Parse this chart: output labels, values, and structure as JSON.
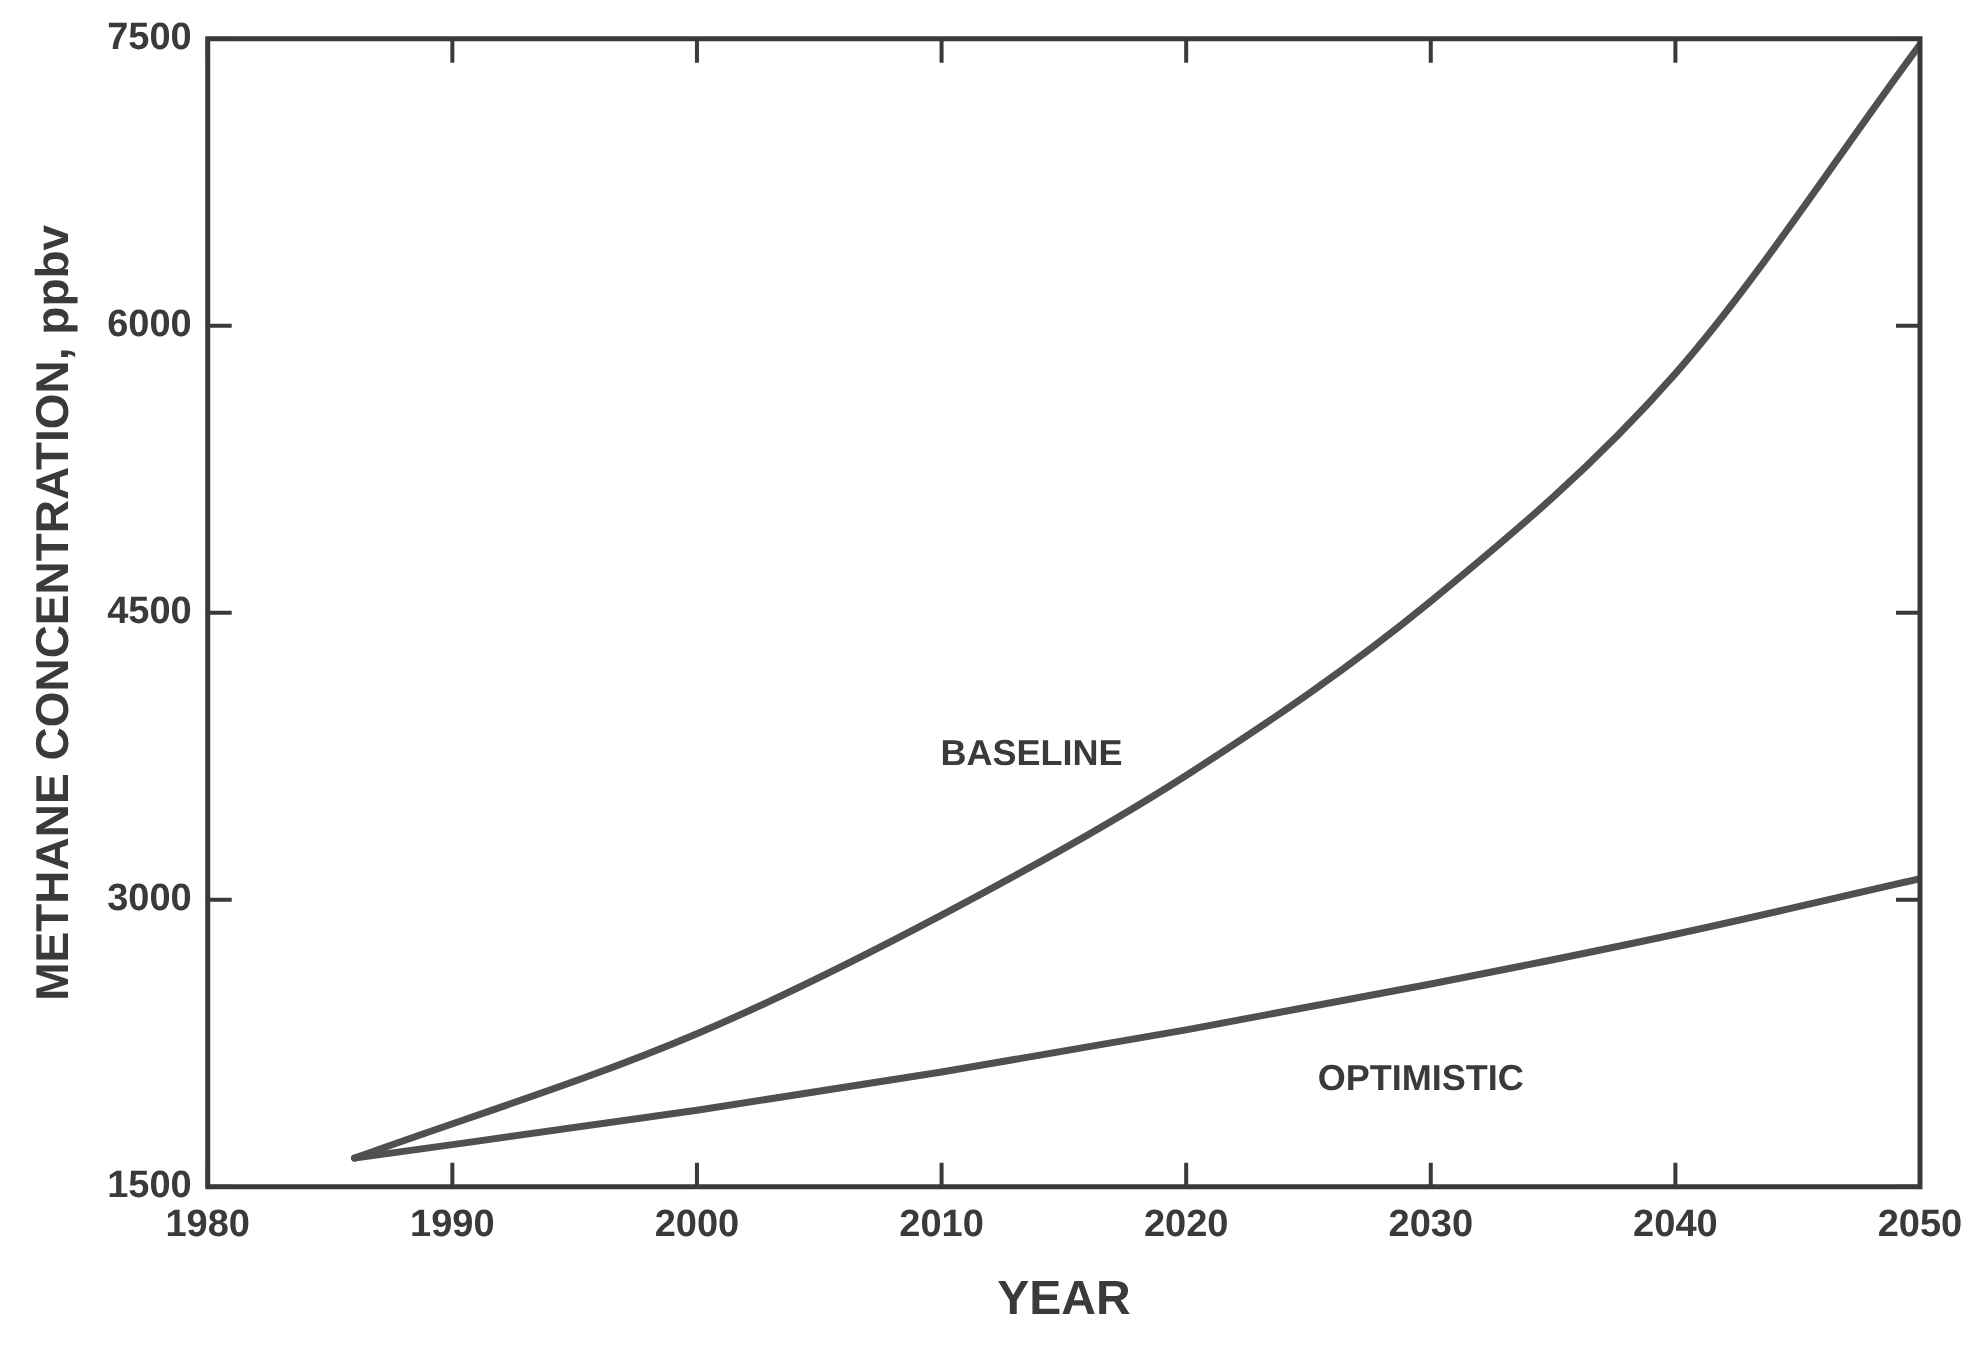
{
  "chart_data": {
    "type": "line",
    "xlabel": "YEAR",
    "ylabel": "METHANE CONCENTRATION, ppbv",
    "x": [
      1986,
      2000,
      2010,
      2020,
      2030,
      2040,
      2050
    ],
    "series": [
      {
        "name": "BASELINE",
        "color": "#505050",
        "values": [
          1650,
          2300,
          2920,
          3650,
          4560,
          5750,
          7470
        ]
      },
      {
        "name": "OPTIMISTIC",
        "color": "#505050",
        "values": [
          1650,
          1900,
          2100,
          2320,
          2560,
          2820,
          3110
        ]
      }
    ],
    "xlim": [
      1980,
      2050
    ],
    "xticks": [
      1980,
      1990,
      2000,
      2010,
      2020,
      2030,
      2040,
      2050
    ],
    "ylim": [
      1500,
      7500
    ],
    "yticks": [
      1500,
      3000,
      4500,
      6000,
      7500
    ],
    "grid": false,
    "legend": false,
    "marker": "none",
    "line_style": "solid"
  }
}
